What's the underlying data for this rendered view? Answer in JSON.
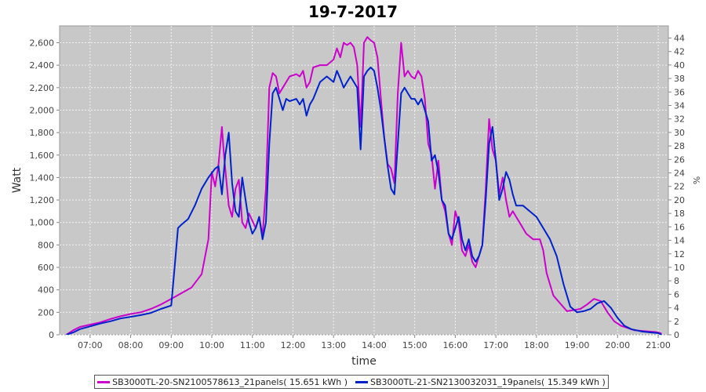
{
  "chart_data": {
    "type": "line",
    "title": "19-7-2017",
    "xlabel": "time",
    "ylabel": "Watt",
    "y2label": "%",
    "xlim": [
      "06:15",
      "21:15"
    ],
    "ylim": [
      0,
      2750
    ],
    "y2lim": [
      0,
      45.8
    ],
    "x_ticks": [
      "07:00",
      "08:00",
      "09:00",
      "10:00",
      "11:00",
      "12:00",
      "13:00",
      "14:00",
      "15:00",
      "16:00",
      "17:00",
      "18:00",
      "19:00",
      "20:00",
      "21:00"
    ],
    "y_ticks": [
      "0",
      "200",
      "400",
      "600",
      "800",
      "1,000",
      "1,200",
      "1,400",
      "1,600",
      "1,800",
      "2,000",
      "2,200",
      "2,400",
      "2,600"
    ],
    "y2_ticks": [
      "0",
      "2",
      "4",
      "6",
      "8",
      "10",
      "12",
      "14",
      "16",
      "18",
      "20",
      "22",
      "24",
      "26",
      "28",
      "30",
      "32",
      "34",
      "36",
      "38",
      "40",
      "42",
      "44"
    ],
    "grid": true,
    "background": "#c8c8c8",
    "legend_position": "bottom",
    "series": [
      {
        "name": "SB3000TL-20-SN2100578613_21panels( 15.651 kWh )",
        "color": "#cc00cc",
        "points": [
          [
            "06:25",
            0
          ],
          [
            "06:35",
            40
          ],
          [
            "06:45",
            70
          ],
          [
            "07:00",
            90
          ],
          [
            "07:15",
            110
          ],
          [
            "07:30",
            140
          ],
          [
            "07:45",
            165
          ],
          [
            "08:00",
            185
          ],
          [
            "08:15",
            200
          ],
          [
            "08:30",
            230
          ],
          [
            "08:45",
            270
          ],
          [
            "09:00",
            320
          ],
          [
            "09:15",
            370
          ],
          [
            "09:30",
            420
          ],
          [
            "09:45",
            540
          ],
          [
            "09:55",
            850
          ],
          [
            "10:00",
            1450
          ],
          [
            "10:05",
            1320
          ],
          [
            "10:10",
            1520
          ],
          [
            "10:15",
            1850
          ],
          [
            "10:18",
            1600
          ],
          [
            "10:25",
            1150
          ],
          [
            "10:30",
            1050
          ],
          [
            "10:35",
            1300
          ],
          [
            "10:40",
            1380
          ],
          [
            "10:45",
            1000
          ],
          [
            "10:50",
            950
          ],
          [
            "10:55",
            1080
          ],
          [
            "11:05",
            950
          ],
          [
            "11:10",
            1050
          ],
          [
            "11:15",
            880
          ],
          [
            "11:20",
            1300
          ],
          [
            "11:25",
            2200
          ],
          [
            "11:30",
            2330
          ],
          [
            "11:35",
            2300
          ],
          [
            "11:40",
            2150
          ],
          [
            "11:45",
            2200
          ],
          [
            "11:55",
            2300
          ],
          [
            "12:05",
            2320
          ],
          [
            "12:10",
            2300
          ],
          [
            "12:15",
            2350
          ],
          [
            "12:20",
            2200
          ],
          [
            "12:25",
            2250
          ],
          [
            "12:30",
            2380
          ],
          [
            "12:40",
            2400
          ],
          [
            "12:50",
            2400
          ],
          [
            "13:00",
            2450
          ],
          [
            "13:05",
            2550
          ],
          [
            "13:10",
            2470
          ],
          [
            "13:15",
            2600
          ],
          [
            "13:20",
            2580
          ],
          [
            "13:25",
            2600
          ],
          [
            "13:30",
            2560
          ],
          [
            "13:35",
            2400
          ],
          [
            "13:40",
            1850
          ],
          [
            "13:45",
            2600
          ],
          [
            "13:50",
            2650
          ],
          [
            "13:55",
            2620
          ],
          [
            "14:00",
            2600
          ],
          [
            "14:05",
            2470
          ],
          [
            "14:10",
            2100
          ],
          [
            "14:15",
            1750
          ],
          [
            "14:20",
            1520
          ],
          [
            "14:25",
            1480
          ],
          [
            "14:30",
            1350
          ],
          [
            "14:35",
            2150
          ],
          [
            "14:40",
            2600
          ],
          [
            "14:45",
            2300
          ],
          [
            "14:50",
            2350
          ],
          [
            "14:55",
            2300
          ],
          [
            "15:00",
            2280
          ],
          [
            "15:05",
            2350
          ],
          [
            "15:10",
            2300
          ],
          [
            "15:15",
            2100
          ],
          [
            "15:20",
            1700
          ],
          [
            "15:25",
            1600
          ],
          [
            "15:30",
            1300
          ],
          [
            "15:35",
            1550
          ],
          [
            "15:40",
            1200
          ],
          [
            "15:45",
            1100
          ],
          [
            "15:50",
            900
          ],
          [
            "15:55",
            800
          ],
          [
            "16:00",
            1100
          ],
          [
            "16:05",
            1000
          ],
          [
            "16:10",
            750
          ],
          [
            "16:15",
            700
          ],
          [
            "16:20",
            800
          ],
          [
            "16:25",
            650
          ],
          [
            "16:30",
            600
          ],
          [
            "16:40",
            800
          ],
          [
            "16:45",
            1300
          ],
          [
            "16:50",
            1920
          ],
          [
            "16:55",
            1650
          ],
          [
            "17:00",
            1550
          ],
          [
            "17:05",
            1250
          ],
          [
            "17:10",
            1400
          ],
          [
            "17:15",
            1200
          ],
          [
            "17:20",
            1050
          ],
          [
            "17:25",
            1100
          ],
          [
            "17:30",
            1050
          ],
          [
            "17:35",
            1000
          ],
          [
            "17:45",
            900
          ],
          [
            "17:55",
            850
          ],
          [
            "18:05",
            850
          ],
          [
            "18:10",
            750
          ],
          [
            "18:15",
            550
          ],
          [
            "18:25",
            350
          ],
          [
            "18:35",
            280
          ],
          [
            "18:45",
            210
          ],
          [
            "18:55",
            220
          ],
          [
            "19:05",
            230
          ],
          [
            "19:15",
            270
          ],
          [
            "19:25",
            320
          ],
          [
            "19:35",
            300
          ],
          [
            "19:45",
            200
          ],
          [
            "19:55",
            120
          ],
          [
            "20:05",
            80
          ],
          [
            "20:15",
            60
          ],
          [
            "20:25",
            40
          ],
          [
            "20:35",
            35
          ],
          [
            "20:45",
            30
          ],
          [
            "20:55",
            25
          ],
          [
            "21:00",
            20
          ],
          [
            "21:05",
            10
          ]
        ]
      },
      {
        "name": "SB3000TL-21-SN2130032031_19panels( 15.349 kWh )",
        "color": "#0022cc",
        "points": [
          [
            "06:25",
            0
          ],
          [
            "06:35",
            20
          ],
          [
            "06:45",
            50
          ],
          [
            "07:00",
            75
          ],
          [
            "07:15",
            100
          ],
          [
            "07:30",
            120
          ],
          [
            "07:45",
            145
          ],
          [
            "08:00",
            160
          ],
          [
            "08:15",
            175
          ],
          [
            "08:30",
            195
          ],
          [
            "08:45",
            230
          ],
          [
            "09:00",
            260
          ],
          [
            "09:05",
            600
          ],
          [
            "09:10",
            950
          ],
          [
            "09:15",
            980
          ],
          [
            "09:25",
            1030
          ],
          [
            "09:35",
            1150
          ],
          [
            "09:45",
            1300
          ],
          [
            "09:55",
            1400
          ],
          [
            "10:05",
            1480
          ],
          [
            "10:10",
            1500
          ],
          [
            "10:15",
            1250
          ],
          [
            "10:20",
            1600
          ],
          [
            "10:25",
            1800
          ],
          [
            "10:30",
            1350
          ],
          [
            "10:35",
            1100
          ],
          [
            "10:40",
            1050
          ],
          [
            "10:45",
            1400
          ],
          [
            "10:50",
            1200
          ],
          [
            "10:55",
            1000
          ],
          [
            "11:00",
            900
          ],
          [
            "11:05",
            950
          ],
          [
            "11:10",
            1050
          ],
          [
            "11:15",
            850
          ],
          [
            "11:20",
            1000
          ],
          [
            "11:25",
            1700
          ],
          [
            "11:30",
            2150
          ],
          [
            "11:35",
            2200
          ],
          [
            "11:40",
            2100
          ],
          [
            "11:45",
            2000
          ],
          [
            "11:50",
            2100
          ],
          [
            "11:55",
            2080
          ],
          [
            "12:05",
            2100
          ],
          [
            "12:10",
            2050
          ],
          [
            "12:15",
            2100
          ],
          [
            "12:20",
            1950
          ],
          [
            "12:25",
            2050
          ],
          [
            "12:30",
            2100
          ],
          [
            "12:40",
            2250
          ],
          [
            "12:50",
            2300
          ],
          [
            "13:00",
            2250
          ],
          [
            "13:05",
            2350
          ],
          [
            "13:10",
            2280
          ],
          [
            "13:15",
            2200
          ],
          [
            "13:20",
            2250
          ],
          [
            "13:25",
            2300
          ],
          [
            "13:30",
            2250
          ],
          [
            "13:35",
            2200
          ],
          [
            "13:40",
            1650
          ],
          [
            "13:45",
            2300
          ],
          [
            "13:50",
            2350
          ],
          [
            "13:55",
            2380
          ],
          [
            "14:00",
            2350
          ],
          [
            "14:05",
            2200
          ],
          [
            "14:10",
            2000
          ],
          [
            "14:15",
            1750
          ],
          [
            "14:20",
            1500
          ],
          [
            "14:25",
            1300
          ],
          [
            "14:30",
            1250
          ],
          [
            "14:35",
            1700
          ],
          [
            "14:40",
            2150
          ],
          [
            "14:45",
            2200
          ],
          [
            "14:50",
            2150
          ],
          [
            "14:55",
            2100
          ],
          [
            "15:00",
            2100
          ],
          [
            "15:05",
            2050
          ],
          [
            "15:10",
            2100
          ],
          [
            "15:15",
            2000
          ],
          [
            "15:20",
            1900
          ],
          [
            "15:25",
            1550
          ],
          [
            "15:30",
            1600
          ],
          [
            "15:35",
            1450
          ],
          [
            "15:40",
            1200
          ],
          [
            "15:45",
            1150
          ],
          [
            "15:50",
            900
          ],
          [
            "15:55",
            850
          ],
          [
            "16:00",
            950
          ],
          [
            "16:05",
            1050
          ],
          [
            "16:10",
            850
          ],
          [
            "16:15",
            750
          ],
          [
            "16:20",
            850
          ],
          [
            "16:25",
            700
          ],
          [
            "16:30",
            650
          ],
          [
            "16:35",
            700
          ],
          [
            "16:40",
            800
          ],
          [
            "16:45",
            1200
          ],
          [
            "16:50",
            1700
          ],
          [
            "16:55",
            1850
          ],
          [
            "17:00",
            1550
          ],
          [
            "17:05",
            1200
          ],
          [
            "17:10",
            1300
          ],
          [
            "17:15",
            1450
          ],
          [
            "17:20",
            1380
          ],
          [
            "17:25",
            1250
          ],
          [
            "17:30",
            1150
          ],
          [
            "17:40",
            1150
          ],
          [
            "17:50",
            1100
          ],
          [
            "18:00",
            1050
          ],
          [
            "18:10",
            950
          ],
          [
            "18:20",
            850
          ],
          [
            "18:30",
            700
          ],
          [
            "18:40",
            450
          ],
          [
            "18:50",
            250
          ],
          [
            "19:00",
            200
          ],
          [
            "19:10",
            210
          ],
          [
            "19:20",
            230
          ],
          [
            "19:30",
            280
          ],
          [
            "19:40",
            300
          ],
          [
            "19:50",
            240
          ],
          [
            "20:00",
            150
          ],
          [
            "20:10",
            80
          ],
          [
            "20:20",
            50
          ],
          [
            "20:35",
            30
          ],
          [
            "20:50",
            20
          ],
          [
            "21:00",
            15
          ],
          [
            "21:05",
            0
          ]
        ]
      }
    ]
  }
}
